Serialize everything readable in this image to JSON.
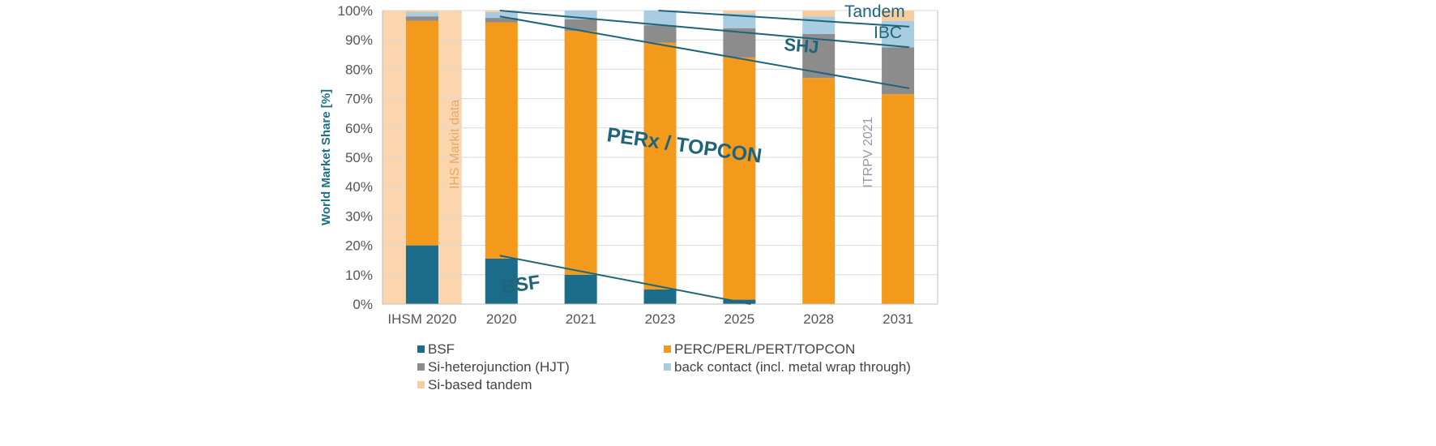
{
  "chart_data": {
    "type": "bar",
    "stacked": true,
    "ylabel": "World Market Share [%]",
    "ylim": [
      0,
      100
    ],
    "yticks": [
      "0%",
      "10%",
      "20%",
      "30%",
      "40%",
      "50%",
      "60%",
      "70%",
      "80%",
      "90%",
      "100%"
    ],
    "categories": [
      "IHSM 2020",
      "2020",
      "2021",
      "2023",
      "2025",
      "2028",
      "2031"
    ],
    "series": [
      {
        "name": "BSF",
        "color": "#1b6b8a",
        "values": [
          20,
          15.5,
          10,
          5,
          1.5,
          0,
          0
        ]
      },
      {
        "name": "PERC/PERL/PERT/TOPCON",
        "color": "#f39a1d",
        "values": [
          76.5,
          80.5,
          83,
          84,
          82.5,
          77,
          71.5
        ]
      },
      {
        "name": "Si-heterojunction (HJT)",
        "color": "#8c8c8c",
        "values": [
          1.5,
          1.5,
          4,
          6,
          10,
          15,
          16
        ]
      },
      {
        "name": "back contact (incl. metal wrap through)",
        "color": "#a8cde0",
        "values": [
          1.5,
          2,
          3,
          5,
          5,
          6,
          9
        ]
      },
      {
        "name": "Si-based tandem",
        "color": "#f8cc9c",
        "values": [
          0.5,
          0.5,
          0,
          0,
          1,
          2,
          3.5
        ]
      }
    ],
    "annotations": {
      "big_labels": [
        "BSF",
        "PERx / TOPCON",
        "SHJ",
        "IBC",
        "Tandem"
      ],
      "ihs_note": "IHS Markit data",
      "itrpv_note": "ITRPV 2021",
      "trend_lines": [
        {
          "name": "BSF trend",
          "from": {
            "category": "2020",
            "value": 16.5
          },
          "to": {
            "category": "2025",
            "value": 0
          }
        },
        {
          "name": "SHJ trend",
          "from": {
            "category": "2020",
            "value": 98
          },
          "to": {
            "category": "2031",
            "value": 73.5
          }
        },
        {
          "name": "IBC trend",
          "from": {
            "category": "2020",
            "value": 100
          },
          "to": {
            "category": "2031",
            "value": 87.5
          }
        },
        {
          "name": "Tandem trend",
          "from": {
            "category": "2023",
            "value": 100
          },
          "to": {
            "category": "2031",
            "value": 94.5
          }
        }
      ]
    }
  }
}
